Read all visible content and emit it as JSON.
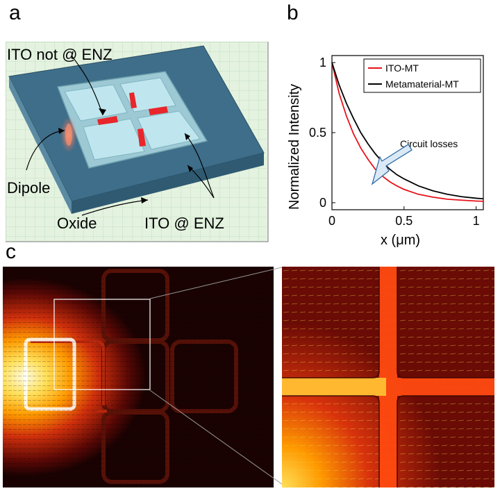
{
  "panels": {
    "a": {
      "letter": "a"
    },
    "b": {
      "letter": "b"
    },
    "c": {
      "letter": "c"
    }
  },
  "schematic": {
    "labels": {
      "ito_not_enz": "ITO not @ ENZ",
      "dipole": "Dipole",
      "oxide": "Oxide",
      "ito_enz": "ITO @ ENZ"
    },
    "colors": {
      "substrate": "#3e6e8a",
      "frame": "#9cc9d4",
      "glass": "#bfe6ee",
      "ito_block": "#e8262b",
      "grid": "#cfe8cf"
    }
  },
  "chart_data": {
    "type": "line",
    "xlabel": "x (μm)",
    "ylabel": "Normalized Intensity",
    "xlim": [
      0,
      1.05
    ],
    "ylim": [
      -0.05,
      1.05
    ],
    "xticks": [
      "0",
      "0.5",
      "1"
    ],
    "yticks": [
      "0",
      "0.5",
      "1"
    ],
    "legend_position": "top-right",
    "annotation": "Circuit losses",
    "series": [
      {
        "name": "ITO-MT",
        "color": "#e8111a",
        "x": [
          0,
          0.05,
          0.1,
          0.15,
          0.2,
          0.25,
          0.3,
          0.35,
          0.4,
          0.45,
          0.5,
          0.6,
          0.7,
          0.8,
          0.9,
          1.0,
          1.05
        ],
        "y": [
          1.0,
          0.78,
          0.62,
          0.49,
          0.39,
          0.31,
          0.24,
          0.19,
          0.15,
          0.12,
          0.095,
          0.06,
          0.04,
          0.025,
          0.018,
          0.012,
          0.01
        ]
      },
      {
        "name": "Metamaterial-MT",
        "color": "#000000",
        "x": [
          0,
          0.05,
          0.1,
          0.15,
          0.2,
          0.25,
          0.3,
          0.35,
          0.4,
          0.45,
          0.5,
          0.6,
          0.7,
          0.8,
          0.9,
          1.0,
          1.05
        ],
        "y": [
          1.0,
          0.84,
          0.71,
          0.6,
          0.5,
          0.42,
          0.35,
          0.29,
          0.24,
          0.2,
          0.17,
          0.12,
          0.085,
          0.06,
          0.043,
          0.032,
          0.028
        ]
      }
    ]
  },
  "fieldmap": {
    "colors": {
      "hot": "#fffbe0",
      "warm": "#ffb000",
      "mid": "#e03a12",
      "dark": "#2a0403",
      "bg": "#140101"
    }
  }
}
